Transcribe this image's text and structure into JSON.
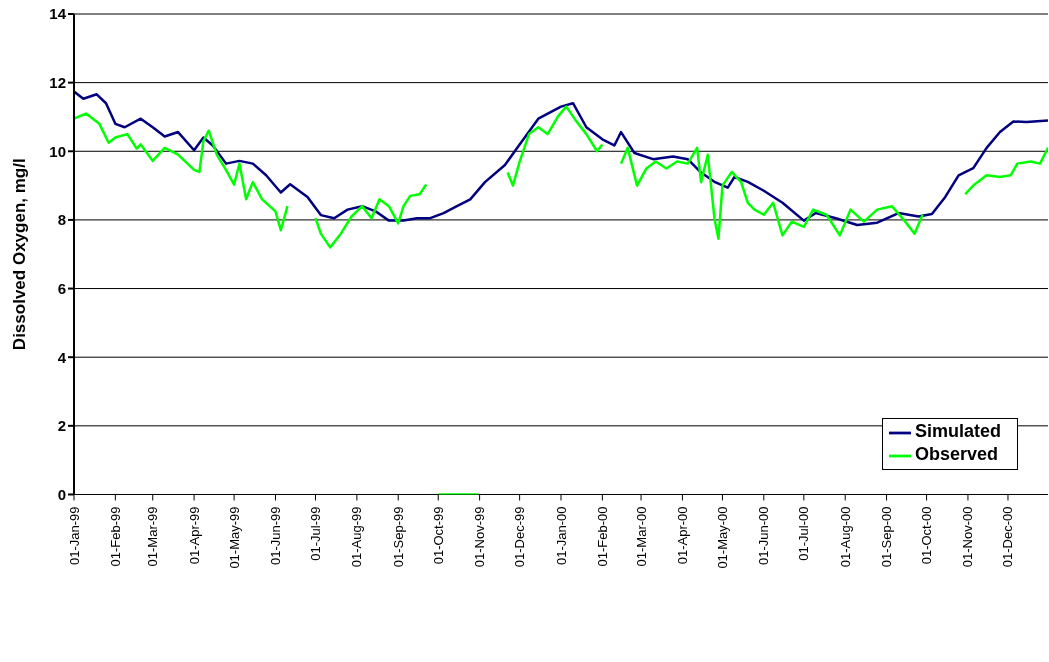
{
  "chart_data": {
    "type": "line",
    "ylabel": "Dissolved Oxygen, mg/l",
    "ylim": [
      0,
      14
    ],
    "yticks": [
      0,
      2,
      4,
      6,
      8,
      10,
      12,
      14
    ],
    "grid": "y",
    "legend": "bottom right",
    "marker": "none",
    "xlim": [
      "1999-01-01",
      "2000-12-31"
    ],
    "xticks": [
      {
        "value": "1999-01-01",
        "label": "01-Jan-99"
      },
      {
        "value": "1999-02-01",
        "label": "01-Feb-99"
      },
      {
        "value": "1999-03-01",
        "label": "01-Mar-99"
      },
      {
        "value": "1999-04-01",
        "label": "01-Apr-99"
      },
      {
        "value": "1999-05-01",
        "label": "01-May-99"
      },
      {
        "value": "1999-06-01",
        "label": "01-Jun-99"
      },
      {
        "value": "1999-07-01",
        "label": "01-Jul-99"
      },
      {
        "value": "1999-08-01",
        "label": "01-Aug-99"
      },
      {
        "value": "1999-09-01",
        "label": "01-Sep-99"
      },
      {
        "value": "1999-10-01",
        "label": "01-Oct-99"
      },
      {
        "value": "1999-11-01",
        "label": "01-Nov-99"
      },
      {
        "value": "1999-12-01",
        "label": "01-Dec-99"
      },
      {
        "value": "2000-01-01",
        "label": "01-Jan-00"
      },
      {
        "value": "2000-02-01",
        "label": "01-Feb-00"
      },
      {
        "value": "2000-03-01",
        "label": "01-Mar-00"
      },
      {
        "value": "2000-04-01",
        "label": "01-Apr-00"
      },
      {
        "value": "2000-05-01",
        "label": "01-May-00"
      },
      {
        "value": "2000-06-01",
        "label": "01-Jun-00"
      },
      {
        "value": "2000-07-01",
        "label": "01-Jul-00"
      },
      {
        "value": "2000-08-01",
        "label": "01-Aug-00"
      },
      {
        "value": "2000-09-01",
        "label": "01-Sep-00"
      },
      {
        "value": "2000-10-01",
        "label": "01-Oct-00"
      },
      {
        "value": "2000-11-01",
        "label": "01-Nov-00"
      },
      {
        "value": "2000-12-01",
        "label": "01-Dec-00"
      }
    ],
    "series": [
      {
        "name": "Simulated",
        "color": "#000080",
        "x": [
          "1999-01-01",
          "1999-01-08",
          "1999-01-18",
          "1999-01-25",
          "1999-02-01",
          "1999-02-08",
          "1999-02-20",
          "1999-03-01",
          "1999-03-10",
          "1999-03-20",
          "1999-04-01",
          "1999-04-08",
          "1999-04-15",
          "1999-04-25",
          "1999-05-05",
          "1999-05-15",
          "1999-05-25",
          "1999-06-05",
          "1999-06-12",
          "1999-06-25",
          "1999-07-05",
          "1999-07-15",
          "1999-07-25",
          "1999-08-05",
          "1999-08-15",
          "1999-08-25",
          "1999-09-05",
          "1999-09-15",
          "1999-09-25",
          "1999-10-05",
          "1999-10-15",
          "1999-10-25",
          "1999-11-05",
          "1999-11-20",
          "1999-12-01",
          "1999-12-15",
          "2000-01-01",
          "2000-01-10",
          "2000-01-20",
          "2000-02-01",
          "2000-02-10",
          "2000-02-15",
          "2000-02-25",
          "2000-03-10",
          "2000-03-25",
          "2000-04-05",
          "2000-04-15",
          "2000-04-25",
          "2000-05-05",
          "2000-05-10",
          "2000-05-20",
          "2000-06-01",
          "2000-06-15",
          "2000-07-01",
          "2000-07-10",
          "2000-07-25",
          "2000-08-10",
          "2000-08-25",
          "2000-09-10",
          "2000-09-25",
          "2000-10-05",
          "2000-10-15",
          "2000-10-25",
          "2000-11-05",
          "2000-11-15",
          "2000-11-25",
          "2000-12-05",
          "2000-12-15",
          "2000-12-31"
        ],
        "values": [
          11.74,
          11.53,
          11.66,
          11.4,
          10.8,
          10.7,
          10.95,
          10.7,
          10.43,
          10.56,
          10.03,
          10.4,
          10.17,
          9.64,
          9.72,
          9.64,
          9.3,
          8.8,
          9.04,
          8.67,
          8.14,
          8.05,
          8.3,
          8.4,
          8.25,
          7.98,
          7.98,
          8.05,
          8.05,
          8.2,
          8.4,
          8.6,
          9.1,
          9.6,
          10.2,
          10.95,
          11.3,
          11.4,
          10.7,
          10.35,
          10.17,
          10.56,
          9.95,
          9.77,
          9.85,
          9.77,
          9.38,
          9.11,
          8.94,
          9.25,
          9.11,
          8.85,
          8.5,
          7.98,
          8.2,
          8.05,
          7.85,
          7.92,
          8.2,
          8.1,
          8.17,
          8.67,
          9.3,
          9.51,
          10.1,
          10.56,
          10.87,
          10.85,
          10.9
        ]
      },
      {
        "name": "Observed",
        "color": "#00ff00",
        "x": [
          "1999-01-01",
          "1999-01-10",
          "1999-01-20",
          "1999-01-27",
          "1999-02-01",
          "1999-02-10",
          "1999-02-17",
          "1999-02-20",
          "1999-03-01",
          "1999-03-10",
          "1999-03-20",
          "1999-04-01",
          "1999-04-05",
          "1999-04-08",
          "1999-04-12",
          "1999-04-18",
          "1999-04-25",
          "1999-05-01",
          "1999-05-05",
          "1999-05-10",
          "1999-05-15",
          "1999-05-22",
          "1999-06-01",
          "1999-06-05",
          "1999-06-10",
          "1999-06-20",
          "1999-07-01",
          "1999-07-05",
          "1999-07-12",
          "1999-07-20",
          "1999-07-28",
          "1999-08-05",
          "1999-08-12",
          "1999-08-18",
          "1999-08-25",
          "1999-09-01",
          "1999-09-05",
          "1999-09-10",
          "1999-09-17",
          "1999-09-22",
          "1999-09-26",
          "1999-10-01",
          "1999-10-31",
          "1999-11-10",
          "1999-11-22",
          "1999-11-26",
          "1999-12-01",
          "1999-12-08",
          "1999-12-15",
          "1999-12-22",
          "1999-12-30",
          "2000-01-05",
          "2000-01-12",
          "2000-01-20",
          "2000-01-28",
          "2000-02-01",
          "2000-02-08",
          "2000-02-15",
          "2000-02-20",
          "2000-02-27",
          "2000-03-05",
          "2000-03-12",
          "2000-03-20",
          "2000-03-28",
          "2000-04-05",
          "2000-04-12",
          "2000-04-15",
          "2000-04-20",
          "2000-04-25",
          "2000-04-28",
          "2000-05-01",
          "2000-05-08",
          "2000-05-15",
          "2000-05-20",
          "2000-05-25",
          "2000-06-01",
          "2000-06-08",
          "2000-06-15",
          "2000-06-22",
          "2000-07-01",
          "2000-07-08",
          "2000-07-18",
          "2000-07-28",
          "2000-08-05",
          "2000-08-15",
          "2000-08-25",
          "2000-09-05",
          "2000-09-15",
          "2000-09-22",
          "2000-09-28",
          "2000-10-15",
          "2000-10-30",
          "2000-11-05",
          "2000-11-15",
          "2000-11-25",
          "2000-12-03",
          "2000-12-08",
          "2000-12-18",
          "2000-12-25",
          "2000-12-31"
        ],
        "values": [
          10.95,
          11.1,
          10.8,
          10.25,
          10.4,
          10.5,
          10.08,
          10.2,
          9.72,
          10.1,
          9.9,
          9.46,
          9.4,
          10.3,
          10.6,
          9.9,
          9.45,
          9.03,
          9.64,
          8.6,
          9.1,
          8.6,
          8.25,
          7.7,
          8.4,
          null,
          8.05,
          7.6,
          7.2,
          7.6,
          8.1,
          8.4,
          8.05,
          8.6,
          8.4,
          7.9,
          8.4,
          8.7,
          8.75,
          9.03,
          null,
          0,
          0,
          null,
          9.38,
          9.0,
          9.7,
          10.5,
          10.7,
          10.5,
          11.03,
          11.3,
          10.9,
          10.5,
          10.0,
          10.2,
          null,
          9.64,
          10.1,
          9.0,
          9.5,
          9.7,
          9.5,
          9.7,
          9.64,
          10.1,
          9.1,
          9.9,
          8.05,
          7.45,
          9.0,
          9.4,
          9.1,
          8.5,
          8.3,
          8.15,
          8.5,
          7.55,
          7.95,
          7.8,
          8.3,
          8.15,
          7.55,
          8.3,
          7.95,
          8.3,
          8.4,
          7.95,
          7.6,
          8.15,
          null,
          8.75,
          9.0,
          9.3,
          9.25,
          9.3,
          9.64,
          9.7,
          9.64,
          10.1
        ]
      }
    ]
  }
}
